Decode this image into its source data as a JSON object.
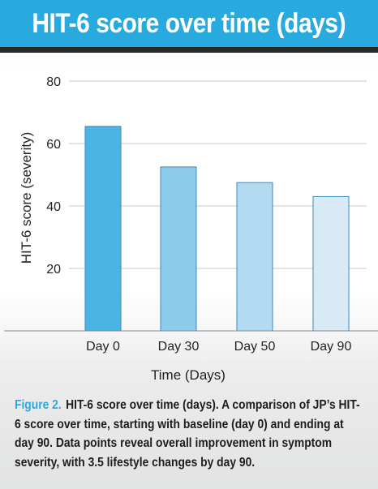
{
  "header": {
    "title": "HIT-6 score over time (days)"
  },
  "chart_data": {
    "type": "bar",
    "title": "HIT-6 score over time (days)",
    "xlabel": "Time (Days)",
    "ylabel": "HIT-6 score (severity)",
    "categories": [
      "Day 0",
      "Day 30",
      "Day 50",
      "Day 90"
    ],
    "values": [
      65.5,
      52.5,
      47.5,
      43.0
    ],
    "ylim": [
      0,
      80
    ],
    "yticks": [
      "20",
      "40",
      "60",
      "80"
    ],
    "grid": true,
    "colors": [
      "#4cb4e4",
      "#8dcbeb",
      "#b2daf0",
      "#d8eaf6"
    ],
    "bar_edge_color": "#3b8bbf"
  },
  "caption": {
    "label": "Figure 2.",
    "text": "HIT-6 score over time (days). A comparison of JP’s HIT-6 score over time, starting with baseline (day 0) and ending at day 90. Data points reveal overall improvement in symptom severity, with 3.5 lifestyle changes by day 90."
  }
}
